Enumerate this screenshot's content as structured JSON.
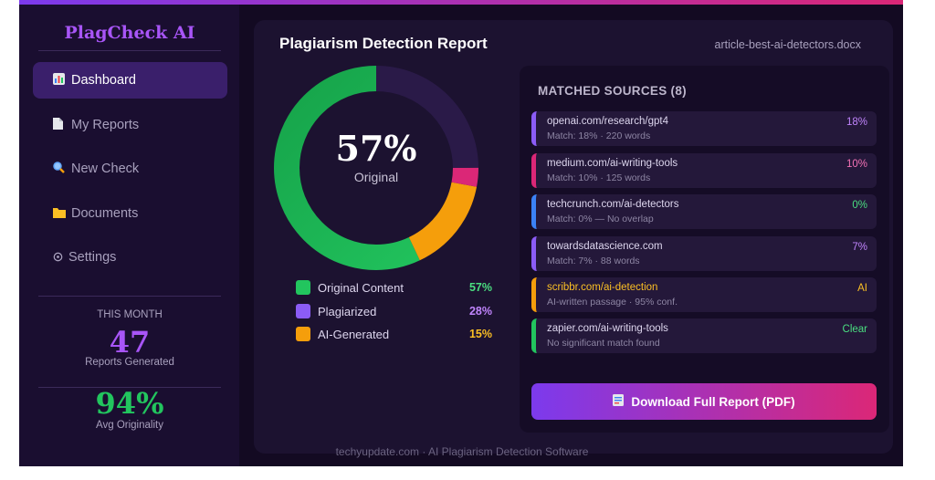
{
  "app": {
    "brand": "PlagCheck AI"
  },
  "sidebar": {
    "items": [
      {
        "label": "Dashboard",
        "icon": "bar-chart-icon",
        "active": true
      },
      {
        "label": "My Reports",
        "icon": "document-icon",
        "active": false
      },
      {
        "label": "New Check",
        "icon": "magnifier-icon",
        "active": false
      },
      {
        "label": "Documents",
        "icon": "folder-icon",
        "active": false
      },
      {
        "label": "Settings",
        "icon": "gear-icon",
        "active": false
      }
    ],
    "stats": {
      "month_caption": "THIS MONTH",
      "reports_value": "47",
      "reports_label": "Reports Generated",
      "originality_value": "94%",
      "originality_label": "Avg Originality"
    }
  },
  "report": {
    "title": "Plagiarism Detection Report",
    "filename": "article-best-ai-detectors.docx",
    "donut_center_value": "57%",
    "donut_center_label": "Original"
  },
  "breakdown": [
    {
      "label": "Original Content",
      "value": "57%",
      "color": "#22c55e"
    },
    {
      "label": "Plagiarized",
      "value": "28%",
      "color": "#8b5cf6"
    },
    {
      "label": "AI-Generated",
      "value": "15%",
      "color": "#f59e0b"
    }
  ],
  "donut_segments": [
    {
      "name": "Original",
      "fraction": 0.57,
      "color": "#22c55e"
    },
    {
      "name": "AI-Generated",
      "fraction": 0.15,
      "color": "#f59e0b"
    },
    {
      "name": "Plagiarized (medium)",
      "fraction": 0.03,
      "color": "#db2777"
    },
    {
      "name": "Plagiarized",
      "fraction": 0.25,
      "color": "#2a1a48"
    }
  ],
  "sources": {
    "title": "MATCHED SOURCES (8)",
    "items": [
      {
        "name": "openai.com/research/gpt4",
        "detail": "Match: 18% · 220 words",
        "value": "18%",
        "color": "#8b5cf6",
        "value_color": "#c084fc"
      },
      {
        "name": "medium.com/ai-writing-tools",
        "detail": "Match: 10% · 125 words",
        "value": "10%",
        "color": "#db2777",
        "value_color": "#f472b6"
      },
      {
        "name": "techcrunch.com/ai-detectors",
        "detail": "Match: 0% — No overlap",
        "value": "0%",
        "color": "#3b82f6",
        "value_color": "#4ade80"
      },
      {
        "name": "towardsdatascience.com",
        "detail": "Match: 7% · 88 words",
        "value": "7%",
        "color": "#8b5cf6",
        "value_color": "#c084fc"
      },
      {
        "name": "scribbr.com/ai-detection",
        "detail": "AI-written passage · 95% conf.",
        "value": "AI",
        "color": "#f59e0b",
        "value_color": "#fbbf24",
        "name_color": "#fbbf24"
      },
      {
        "name": "zapier.com/ai-writing-tools",
        "detail": "No significant match found",
        "value": "Clear",
        "color": "#22c55e",
        "value_color": "#4ade80"
      }
    ]
  },
  "actions": {
    "download_label": "Download Full Report (PDF)",
    "download_icon": "document-icon"
  },
  "footer": {
    "text": "techyupdate.com · AI Plagiarism Detection Software"
  }
}
